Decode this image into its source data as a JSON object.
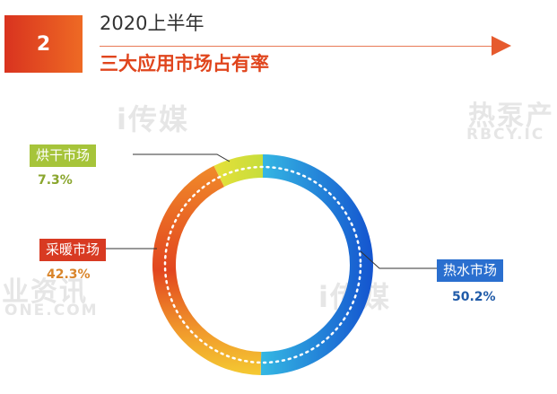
{
  "header": {
    "badge_number": "2",
    "subtitle": "2020上半年",
    "title": "三大应用市场占有率",
    "accent_color": "#e0451d"
  },
  "watermarks": {
    "wm1": "i传媒",
    "wm2": "热泵产",
    "wm3": "RBCY.IC",
    "wm4": "业资讯",
    "wm5": "ONE.COM",
    "wm6": "i传媒"
  },
  "chart_data": {
    "type": "pie",
    "style": "donut",
    "title": "三大应用市场占有率",
    "slices": [
      {
        "label": "热水市场",
        "value": 50.2,
        "value_label": "50.2%",
        "color": "#1a64d2",
        "label_bg": "#2a6fcf",
        "value_color": "#1f5aa8"
      },
      {
        "label": "采暖市场",
        "value": 42.3,
        "value_label": "42.3%",
        "color": "#e24a24",
        "label_bg": "#d83a22",
        "value_color": "#d9852b"
      },
      {
        "label": "烘干市场",
        "value": 7.3,
        "value_label": "7.3%",
        "color": "#c9dc3a",
        "label_bg": "#a6c43a",
        "value_color": "#8aa62e"
      }
    ]
  }
}
